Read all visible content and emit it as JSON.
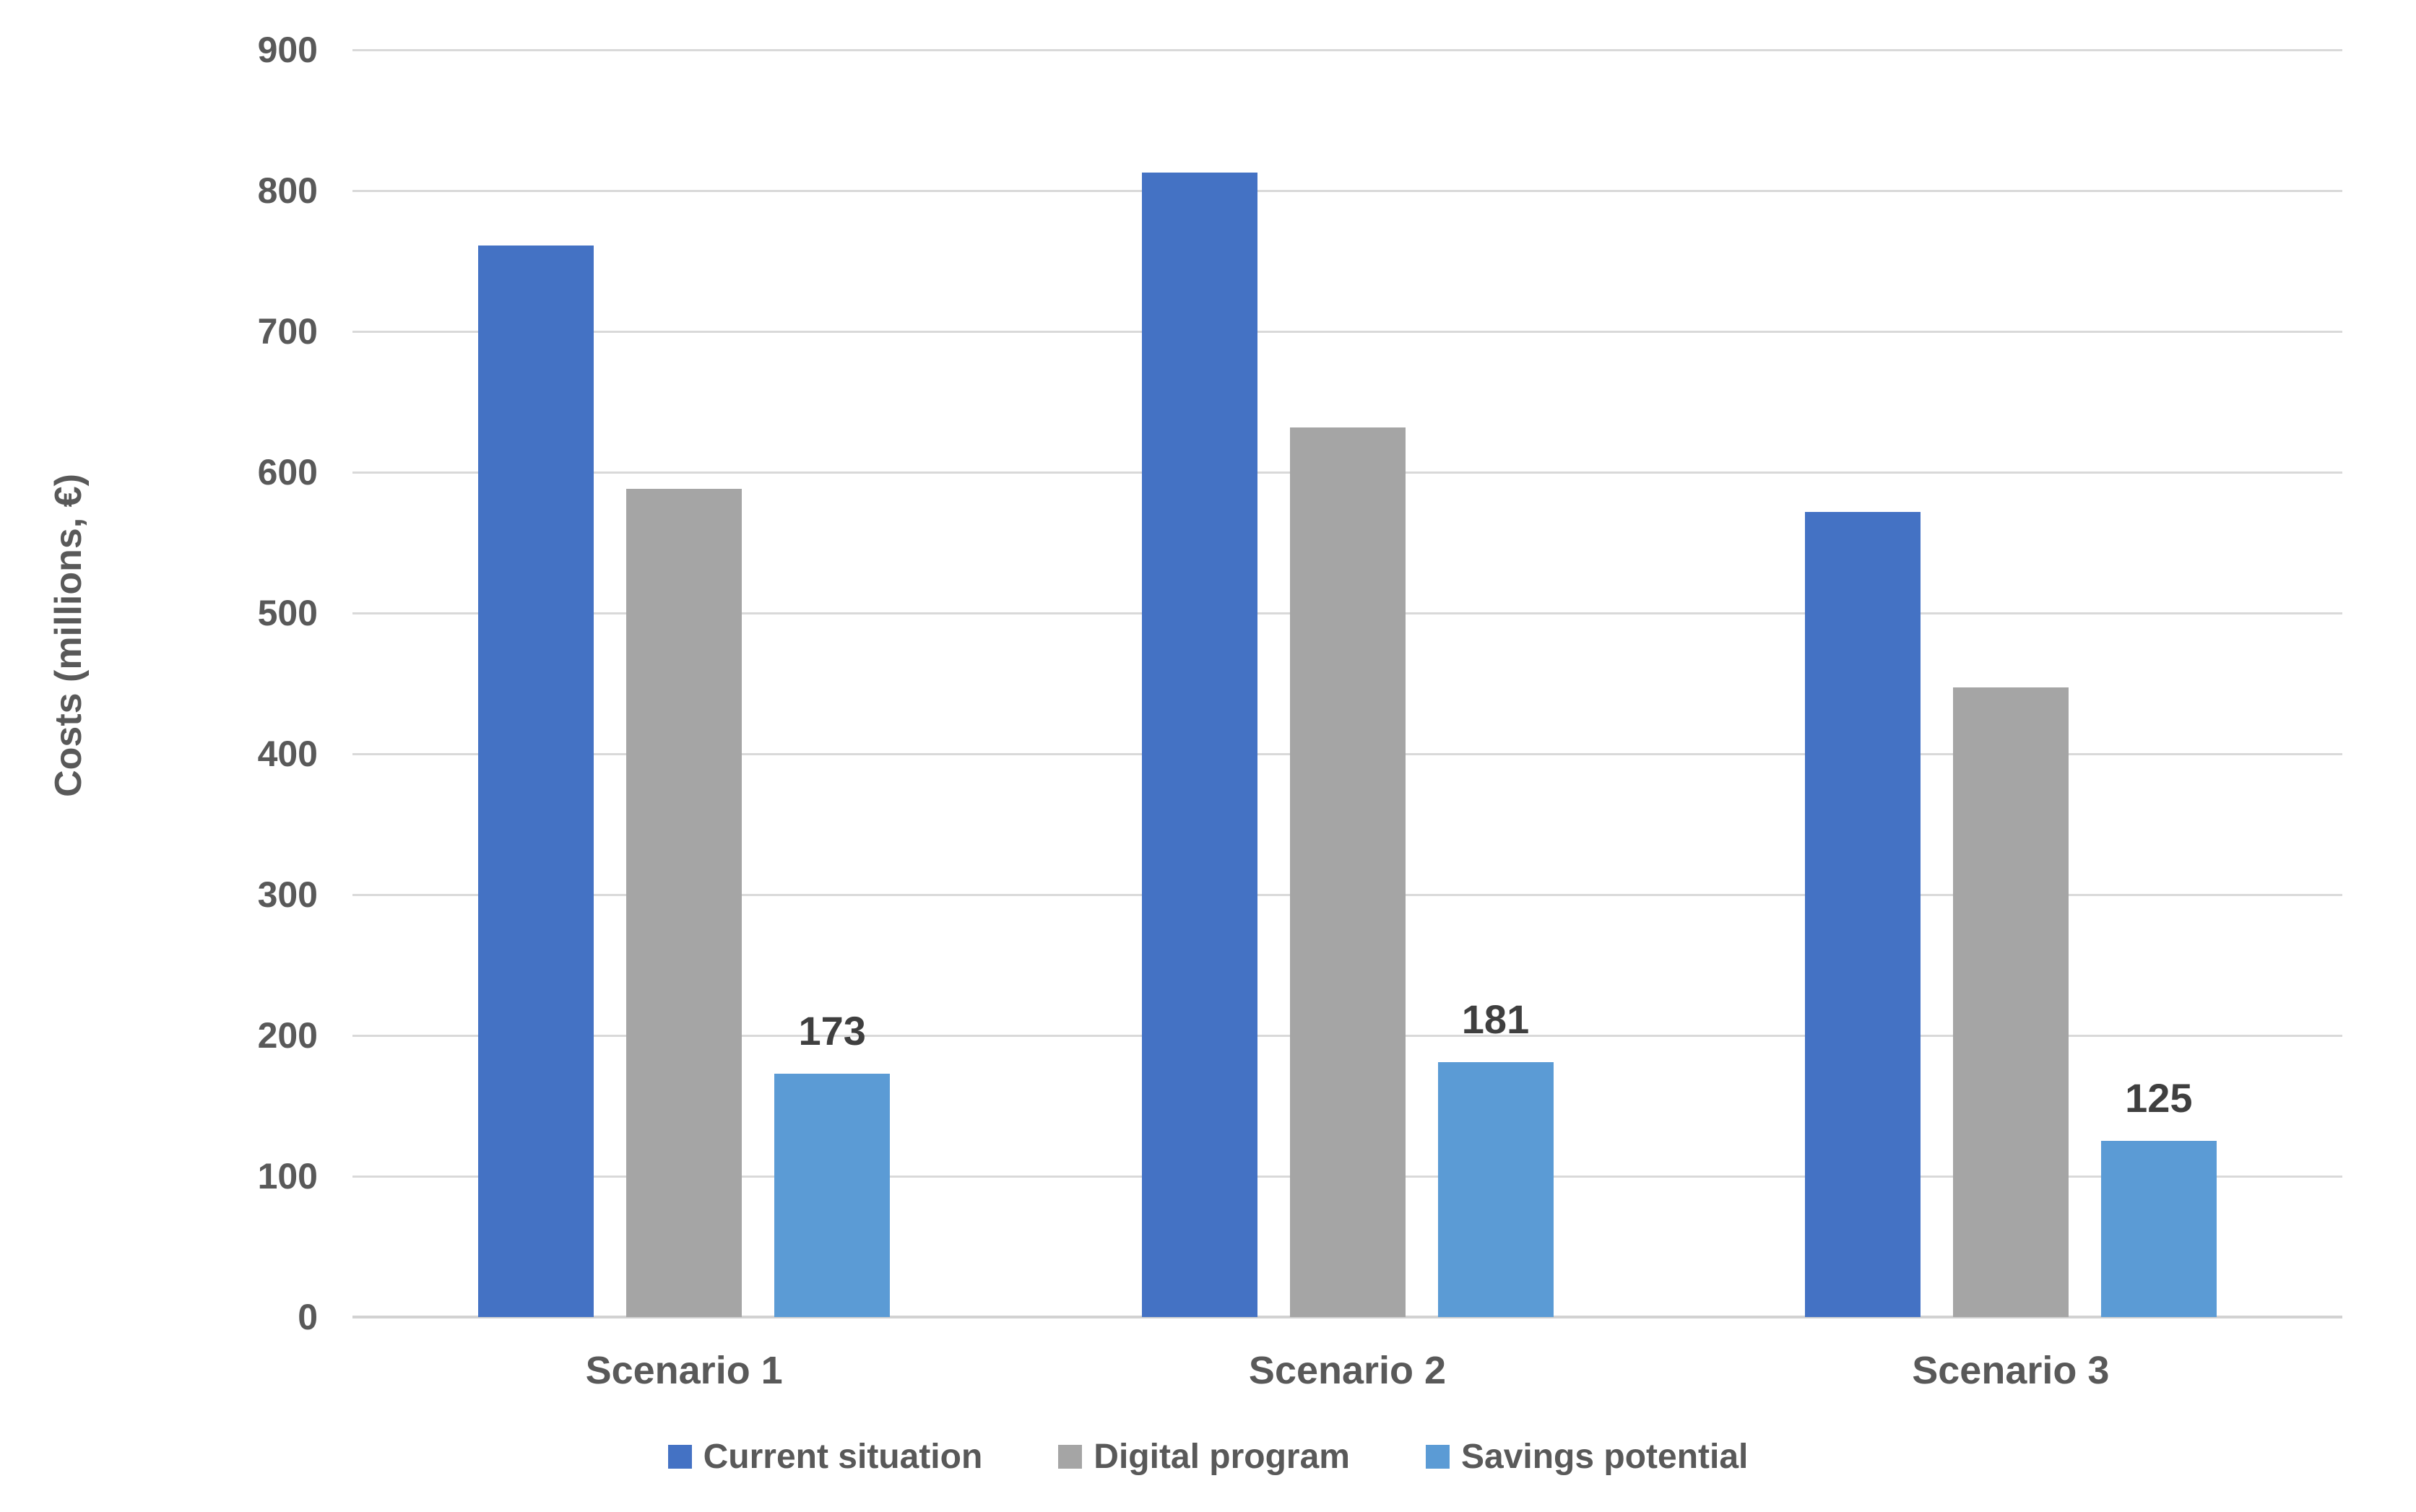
{
  "chart_data": {
    "type": "bar",
    "title": "",
    "xlabel": "",
    "ylabel": "Costs (millions, €)",
    "categories": [
      "Scenario 1",
      "Scenario 2",
      "Scenario 3"
    ],
    "series": [
      {
        "name": "Current situation",
        "color": "#4472C4",
        "values": [
          761,
          813,
          572
        ],
        "data_labels_shown": false
      },
      {
        "name": "Digital program",
        "color": "#A5A5A5",
        "values": [
          588,
          632,
          447
        ],
        "data_labels_shown": false
      },
      {
        "name": "Savings potential",
        "color": "#5B9BD5",
        "values": [
          173,
          181,
          125
        ],
        "data_labels_shown": true
      }
    ],
    "data_labels": [
      "173",
      "181",
      "125"
    ],
    "y_axis": {
      "min": 0,
      "max": 900,
      "step": 100,
      "tick_labels": [
        "0",
        "100",
        "200",
        "300",
        "400",
        "500",
        "600",
        "700",
        "800",
        "900"
      ]
    },
    "grid": true,
    "legend_position": "bottom",
    "colors": {
      "gridline": "#D9D9D9",
      "axis_line": "#D2D2D2",
      "tick_text": "#595959",
      "data_label_text": "#3F3F3F",
      "background": "#FFFFFF"
    }
  }
}
